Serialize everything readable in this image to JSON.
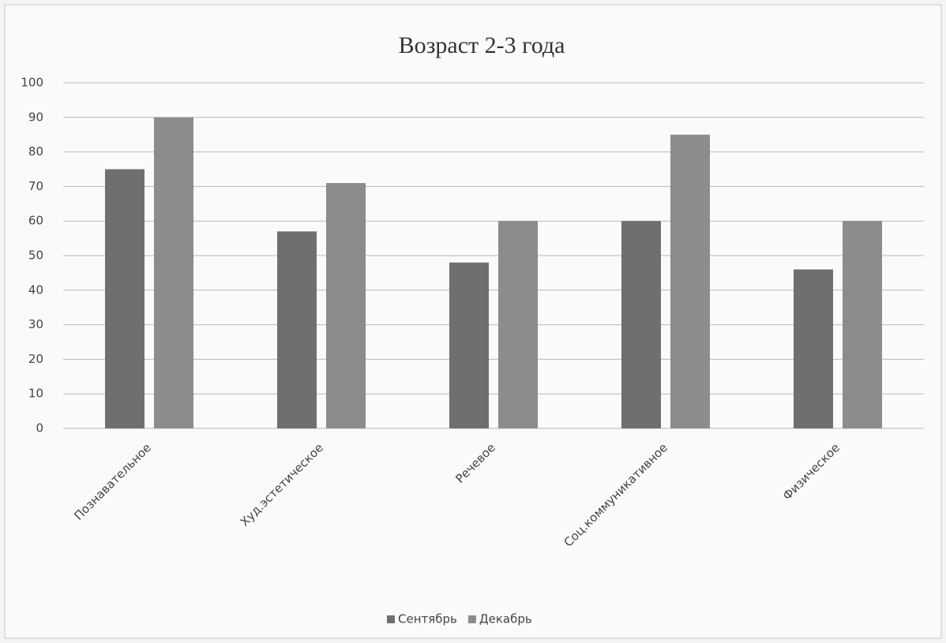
{
  "chart_data": {
    "type": "bar",
    "title": "Возраст 2-3 года",
    "categories": [
      "Познавательное",
      "Худ.эстетическое",
      "Речевое",
      "Соц.коммуникативное",
      "Физическое"
    ],
    "series": [
      {
        "name": "Сентябрь",
        "color": "#6f6f6f",
        "values": [
          75,
          57,
          48,
          60,
          46
        ]
      },
      {
        "name": "Декабрь",
        "color": "#8c8c8c",
        "values": [
          90,
          71,
          60,
          85,
          60
        ]
      }
    ],
    "ylim": [
      0,
      100
    ],
    "yticks": [
      0,
      10,
      20,
      30,
      40,
      50,
      60,
      70,
      80,
      90,
      100
    ],
    "grid": true,
    "legend": "bottom"
  }
}
